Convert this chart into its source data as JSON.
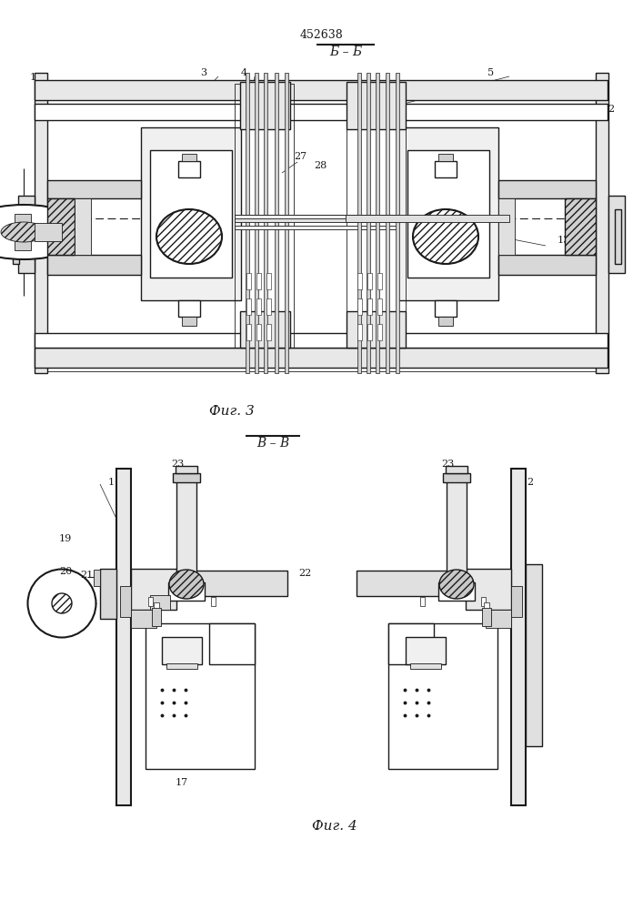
{
  "patent_number": "452638",
  "fig3_caption": "Фиг. 3",
  "fig4_caption": "Фиг. 4",
  "fig3_section": "Б – Б",
  "fig4_section": "В – В",
  "bg_color": "#ffffff",
  "lc": "#1a1a1a"
}
